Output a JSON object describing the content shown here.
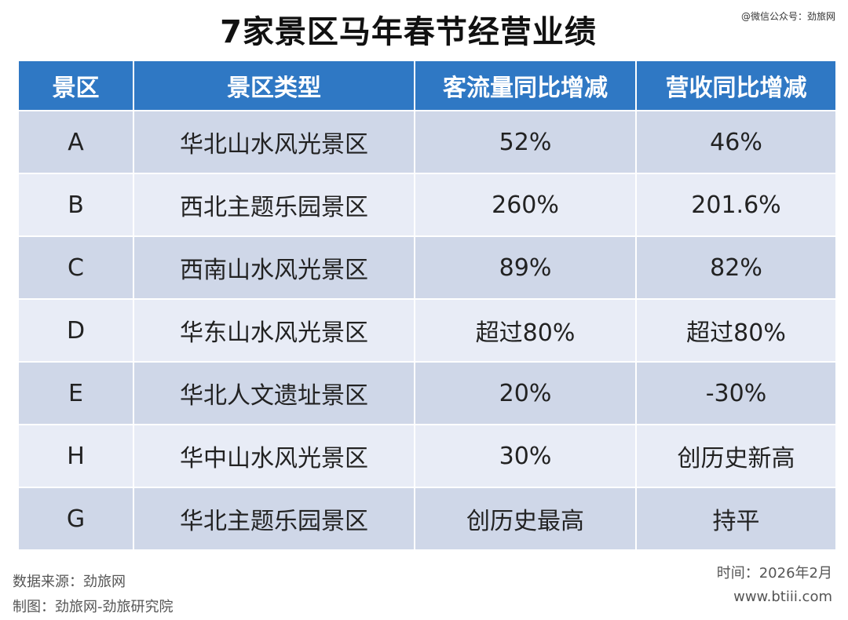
{
  "title": "7家景区马年春节经营业绩",
  "watermark": "@微信公众号：劲旅网",
  "chart_data": {
    "type": "table",
    "columns": [
      "景区",
      "景区类型",
      "客流量同比增减",
      "营收同比增减"
    ],
    "rows": [
      [
        "A",
        "华北山水风光景区",
        "52%",
        "46%"
      ],
      [
        "B",
        "西北主题乐园景区",
        "260%",
        "201.6%"
      ],
      [
        "C",
        "西南山水风光景区",
        "89%",
        "82%"
      ],
      [
        "D",
        "华东山水风光景区",
        "超过80%",
        "超过80%"
      ],
      [
        "E",
        "华北人文遗址景区",
        "20%",
        "-30%"
      ],
      [
        "H",
        "华中山水风光景区",
        "30%",
        "创历史新高"
      ],
      [
        "G",
        "华北主题乐园景区",
        "创历史最高",
        "持平"
      ]
    ]
  },
  "footer": {
    "source": "数据来源：劲旅网",
    "made_by": "制图：劲旅网-劲旅研究院",
    "time": "时间：2026年2月",
    "website": "www.btiii.com"
  },
  "colors": {
    "header_bg": "#2f78c4",
    "row_dark": "#cfd7e8",
    "row_light": "#e8ecf6"
  }
}
